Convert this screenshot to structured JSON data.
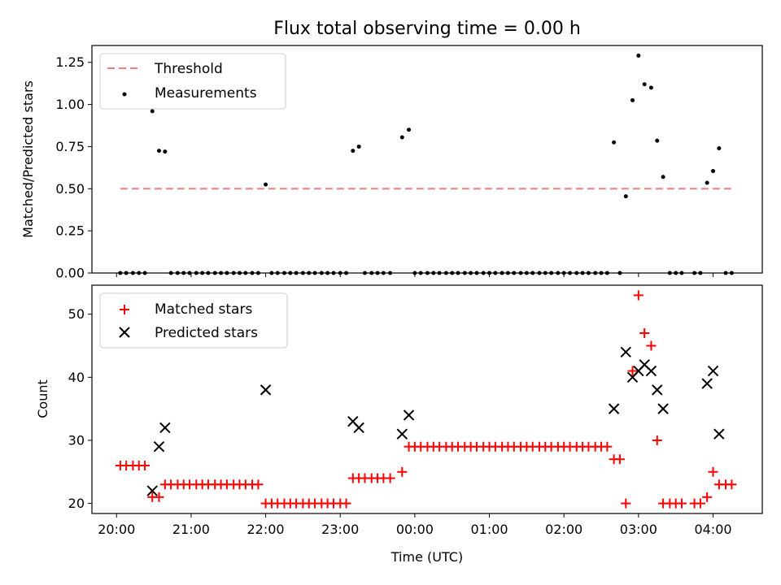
{
  "chart_data": [
    {
      "type": "scatter",
      "title": "Flux total observing time = 0.00 h",
      "xlabel": "",
      "ylabel": "Matched/Predicted stars",
      "x_unit": "hours since 20:00 UTC",
      "xlim": [
        -0.33,
        8.66
      ],
      "ylim": [
        0,
        1.35
      ],
      "yticks": [
        0.0,
        0.25,
        0.5,
        0.75,
        1.0,
        1.25
      ],
      "ytick_labels": [
        "0.00",
        "0.25",
        "0.50",
        "0.75",
        "1.00",
        "1.25"
      ],
      "grid": false,
      "legend_position": "top-left",
      "series": [
        {
          "name": "Threshold",
          "kind": "dashed-line",
          "color": "#f08080",
          "x": [
            0.05,
            8.25
          ],
          "y": [
            0.5,
            0.5
          ]
        },
        {
          "name": "Measurements",
          "kind": "dots",
          "color": "#000000",
          "points": [
            [
              0.05,
              0
            ],
            [
              0.13,
              0
            ],
            [
              0.22,
              0
            ],
            [
              0.3,
              0
            ],
            [
              0.38,
              0
            ],
            [
              0.48,
              0.96
            ],
            [
              0.57,
              0.725
            ],
            [
              0.65,
              0.72
            ],
            [
              0.73,
              0
            ],
            [
              0.82,
              0
            ],
            [
              0.9,
              0
            ],
            [
              0.98,
              0
            ],
            [
              1.07,
              0
            ],
            [
              1.15,
              0
            ],
            [
              1.23,
              0
            ],
            [
              1.32,
              0
            ],
            [
              1.4,
              0
            ],
            [
              1.48,
              0
            ],
            [
              1.57,
              0
            ],
            [
              1.65,
              0
            ],
            [
              1.73,
              0
            ],
            [
              1.82,
              0
            ],
            [
              1.9,
              0
            ],
            [
              2.0,
              0.525
            ],
            [
              2.08,
              0
            ],
            [
              2.16,
              0
            ],
            [
              2.25,
              0
            ],
            [
              2.33,
              0
            ],
            [
              2.41,
              0
            ],
            [
              2.5,
              0
            ],
            [
              2.58,
              0
            ],
            [
              2.66,
              0
            ],
            [
              2.75,
              0
            ],
            [
              2.83,
              0
            ],
            [
              2.91,
              0
            ],
            [
              3.0,
              0
            ],
            [
              3.08,
              0
            ],
            [
              3.17,
              0.725
            ],
            [
              3.25,
              0.75
            ],
            [
              3.33,
              0
            ],
            [
              3.42,
              0
            ],
            [
              3.5,
              0
            ],
            [
              3.58,
              0
            ],
            [
              3.67,
              0
            ],
            [
              3.83,
              0.805
            ],
            [
              3.92,
              0.85
            ],
            [
              4.0,
              0
            ],
            [
              4.08,
              0
            ],
            [
              4.17,
              0
            ],
            [
              4.25,
              0
            ],
            [
              4.33,
              0
            ],
            [
              4.42,
              0
            ],
            [
              4.5,
              0
            ],
            [
              4.58,
              0
            ],
            [
              4.67,
              0
            ],
            [
              4.75,
              0
            ],
            [
              4.83,
              0
            ],
            [
              4.92,
              0
            ],
            [
              5.0,
              0
            ],
            [
              5.08,
              0
            ],
            [
              5.17,
              0
            ],
            [
              5.25,
              0
            ],
            [
              5.33,
              0
            ],
            [
              5.42,
              0
            ],
            [
              5.5,
              0
            ],
            [
              5.58,
              0
            ],
            [
              5.67,
              0
            ],
            [
              5.75,
              0
            ],
            [
              5.83,
              0
            ],
            [
              5.92,
              0
            ],
            [
              6.0,
              0
            ],
            [
              6.08,
              0
            ],
            [
              6.17,
              0
            ],
            [
              6.25,
              0
            ],
            [
              6.33,
              0
            ],
            [
              6.42,
              0
            ],
            [
              6.5,
              0
            ],
            [
              6.58,
              0
            ],
            [
              6.67,
              0.775
            ],
            [
              6.75,
              0
            ],
            [
              6.83,
              0.455
            ],
            [
              6.92,
              1.025
            ],
            [
              7.0,
              1.29
            ],
            [
              7.08,
              1.12
            ],
            [
              7.17,
              1.1
            ],
            [
              7.25,
              0.785
            ],
            [
              7.33,
              0.57
            ],
            [
              7.42,
              0
            ],
            [
              7.5,
              0
            ],
            [
              7.58,
              0
            ],
            [
              7.75,
              0
            ],
            [
              7.83,
              0
            ],
            [
              7.92,
              0.535
            ],
            [
              8.0,
              0.605
            ],
            [
              8.08,
              0.74
            ],
            [
              8.17,
              0
            ],
            [
              8.25,
              0
            ]
          ]
        }
      ]
    },
    {
      "type": "scatter",
      "title": "",
      "xlabel": "Time (UTC)",
      "ylabel": "Count",
      "x_unit": "hours since 20:00 UTC",
      "xlim": [
        -0.33,
        8.66
      ],
      "ylim": [
        18.4,
        54.6
      ],
      "yticks": [
        20,
        30,
        40,
        50
      ],
      "ytick_labels": [
        "20",
        "30",
        "40",
        "50"
      ],
      "xticks": [
        0,
        1,
        2,
        3,
        4,
        5,
        6,
        7,
        8
      ],
      "xtick_labels": [
        "20:00",
        "21:00",
        "22:00",
        "23:00",
        "00:00",
        "01:00",
        "02:00",
        "03:00",
        "04:00"
      ],
      "grid": false,
      "legend_position": "top-left",
      "series": [
        {
          "name": "Matched stars",
          "marker": "plus",
          "color": "#ff0000",
          "points": [
            [
              0.05,
              26
            ],
            [
              0.13,
              26
            ],
            [
              0.22,
              26
            ],
            [
              0.3,
              26
            ],
            [
              0.38,
              26
            ],
            [
              0.48,
              21
            ],
            [
              0.57,
              21
            ],
            [
              0.65,
              23
            ],
            [
              0.73,
              23
            ],
            [
              0.82,
              23
            ],
            [
              0.9,
              23
            ],
            [
              0.98,
              23
            ],
            [
              1.07,
              23
            ],
            [
              1.15,
              23
            ],
            [
              1.23,
              23
            ],
            [
              1.32,
              23
            ],
            [
              1.4,
              23
            ],
            [
              1.48,
              23
            ],
            [
              1.57,
              23
            ],
            [
              1.65,
              23
            ],
            [
              1.73,
              23
            ],
            [
              1.82,
              23
            ],
            [
              1.9,
              23
            ],
            [
              2.0,
              20
            ],
            [
              2.08,
              20
            ],
            [
              2.16,
              20
            ],
            [
              2.25,
              20
            ],
            [
              2.33,
              20
            ],
            [
              2.41,
              20
            ],
            [
              2.5,
              20
            ],
            [
              2.58,
              20
            ],
            [
              2.66,
              20
            ],
            [
              2.75,
              20
            ],
            [
              2.83,
              20
            ],
            [
              2.91,
              20
            ],
            [
              3.0,
              20
            ],
            [
              3.08,
              20
            ],
            [
              3.17,
              24
            ],
            [
              3.25,
              24
            ],
            [
              3.33,
              24
            ],
            [
              3.42,
              24
            ],
            [
              3.5,
              24
            ],
            [
              3.58,
              24
            ],
            [
              3.67,
              24
            ],
            [
              3.83,
              25
            ],
            [
              3.92,
              29
            ],
            [
              4.0,
              29
            ],
            [
              4.08,
              29
            ],
            [
              4.17,
              29
            ],
            [
              4.25,
              29
            ],
            [
              4.33,
              29
            ],
            [
              4.42,
              29
            ],
            [
              4.5,
              29
            ],
            [
              4.58,
              29
            ],
            [
              4.67,
              29
            ],
            [
              4.75,
              29
            ],
            [
              4.83,
              29
            ],
            [
              4.92,
              29
            ],
            [
              5.0,
              29
            ],
            [
              5.08,
              29
            ],
            [
              5.17,
              29
            ],
            [
              5.25,
              29
            ],
            [
              5.33,
              29
            ],
            [
              5.42,
              29
            ],
            [
              5.5,
              29
            ],
            [
              5.58,
              29
            ],
            [
              5.67,
              29
            ],
            [
              5.75,
              29
            ],
            [
              5.83,
              29
            ],
            [
              5.92,
              29
            ],
            [
              6.0,
              29
            ],
            [
              6.08,
              29
            ],
            [
              6.17,
              29
            ],
            [
              6.25,
              29
            ],
            [
              6.33,
              29
            ],
            [
              6.42,
              29
            ],
            [
              6.5,
              29
            ],
            [
              6.58,
              29
            ],
            [
              6.67,
              27
            ],
            [
              6.75,
              27
            ],
            [
              6.83,
              20
            ],
            [
              6.92,
              41
            ],
            [
              7.0,
              53
            ],
            [
              7.08,
              47
            ],
            [
              7.17,
              45
            ],
            [
              7.25,
              30
            ],
            [
              7.33,
              20
            ],
            [
              7.42,
              20
            ],
            [
              7.5,
              20
            ],
            [
              7.58,
              20
            ],
            [
              7.75,
              20
            ],
            [
              7.83,
              20
            ],
            [
              7.92,
              21
            ],
            [
              8.0,
              25
            ],
            [
              8.08,
              23
            ],
            [
              8.17,
              23
            ],
            [
              8.25,
              23
            ]
          ]
        },
        {
          "name": "Predicted stars",
          "marker": "x",
          "color": "#000000",
          "points": [
            [
              0.48,
              22
            ],
            [
              0.57,
              29
            ],
            [
              0.65,
              32
            ],
            [
              2.0,
              38
            ],
            [
              3.17,
              33
            ],
            [
              3.25,
              32
            ],
            [
              3.83,
              31
            ],
            [
              3.92,
              34
            ],
            [
              6.67,
              35
            ],
            [
              6.83,
              44
            ],
            [
              6.92,
              40
            ],
            [
              7.0,
              41
            ],
            [
              7.08,
              42
            ],
            [
              7.17,
              41
            ],
            [
              7.25,
              38
            ],
            [
              7.33,
              35
            ],
            [
              7.92,
              39
            ],
            [
              8.0,
              41
            ],
            [
              8.08,
              31
            ]
          ]
        }
      ]
    }
  ]
}
